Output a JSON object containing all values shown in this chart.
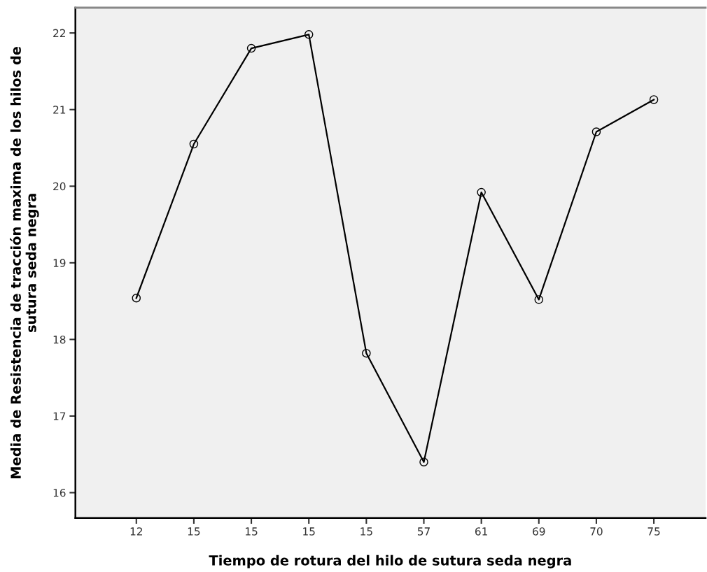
{
  "chart_data": {
    "type": "line",
    "xlabel": "Tiempo de rotura del hilo de sutura seda negra",
    "ylabel": "Media de Resistencia de tracción maxima de los hilos de\nsutura seda negra",
    "categories": [
      "12",
      "15",
      "15",
      "15",
      "15",
      "57",
      "61",
      "69",
      "70",
      "75"
    ],
    "series": [
      {
        "color": "#000000",
        "values": [
          18.54,
          20.55,
          21.8,
          21.98,
          17.82,
          16.4,
          19.92,
          18.52,
          20.71,
          21.13
        ]
      }
    ],
    "ylim": [
      15.67,
      22.33
    ],
    "yticks": [
      16,
      17,
      18,
      19,
      20,
      21,
      22
    ],
    "marker": "circle",
    "line_style": "solid",
    "grid": false,
    "legend": false
  }
}
